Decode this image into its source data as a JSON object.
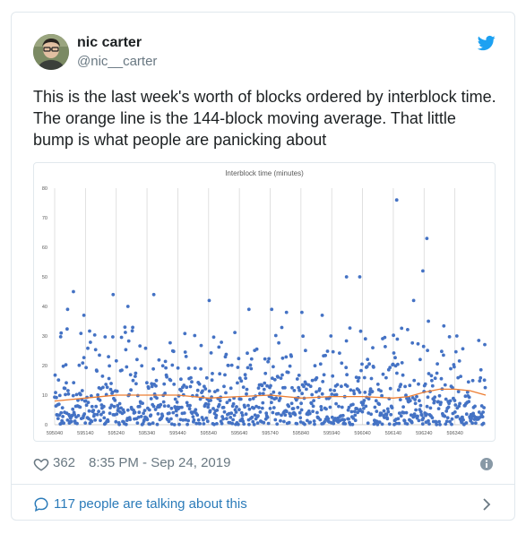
{
  "tweet": {
    "author_name": "nic carter",
    "author_handle": "@nic__carter",
    "text": "This is the last week's worth of blocks ordered by interblock time. The orange line is the 144-block moving average. That little bump is what people are panicking about",
    "likes": "362",
    "timestamp": "8:35 PM - Sep 24, 2019",
    "conversation": "117 people are talking about this"
  },
  "icons": {
    "bird": "twitter-bird-icon",
    "like": "heart-icon",
    "info": "info-icon",
    "talk": "speech-bubble-icon",
    "chevron": "chevron-right-icon"
  },
  "colors": {
    "link": "#2b7bb9",
    "bird": "#1da1f2",
    "scatter": "#4472c4",
    "moving_average": "#ed7d31"
  },
  "chart_data": {
    "type": "scatter",
    "title": "Interblock time (minutes)",
    "xlabel": "",
    "ylabel": "",
    "xlim": [
      595040,
      596440
    ],
    "ylim": [
      0,
      80
    ],
    "x_ticks": [
      "595040",
      "595140",
      "595240",
      "595340",
      "595440",
      "595540",
      "595640",
      "595740",
      "595840",
      "595940",
      "596040",
      "596140",
      "596240",
      "596340"
    ],
    "y_ticks": [
      "80",
      "70",
      "60",
      "50",
      "40",
      "30",
      "20",
      "10",
      "0"
    ],
    "grid": "vertical",
    "legend": "none",
    "series": [
      {
        "kind": "points",
        "outliers": [
          {
            "x": 595061,
            "y": 31
          },
          {
            "x": 595082,
            "y": 39
          },
          {
            "x": 595101,
            "y": 45
          },
          {
            "x": 595135,
            "y": 37
          },
          {
            "x": 595230,
            "y": 44
          },
          {
            "x": 595278,
            "y": 40
          },
          {
            "x": 595362,
            "y": 44
          },
          {
            "x": 595542,
            "y": 42
          },
          {
            "x": 595671,
            "y": 39
          },
          {
            "x": 595745,
            "y": 39
          },
          {
            "x": 595793,
            "y": 38
          },
          {
            "x": 595843,
            "y": 38
          },
          {
            "x": 595909,
            "y": 37
          },
          {
            "x": 595988,
            "y": 50
          },
          {
            "x": 596031,
            "y": 50
          },
          {
            "x": 596151,
            "y": 76
          },
          {
            "x": 596206,
            "y": 42
          },
          {
            "x": 596236,
            "y": 52
          },
          {
            "x": 596249,
            "y": 63
          },
          {
            "x": 596254,
            "y": 35
          }
        ]
      },
      {
        "kind": "line",
        "x": [
          595040,
          595140,
          595240,
          595340,
          595440,
          595540,
          595640,
          595740,
          595840,
          595940,
          596040,
          596140,
          596190,
          596240,
          596290,
          596340,
          596390,
          596440
        ],
        "values": [
          8,
          9,
          10,
          10,
          10,
          9,
          9.5,
          10,
          9,
          9.5,
          9.5,
          9,
          9.5,
          11,
          12,
          12,
          11.5,
          10
        ]
      }
    ]
  }
}
